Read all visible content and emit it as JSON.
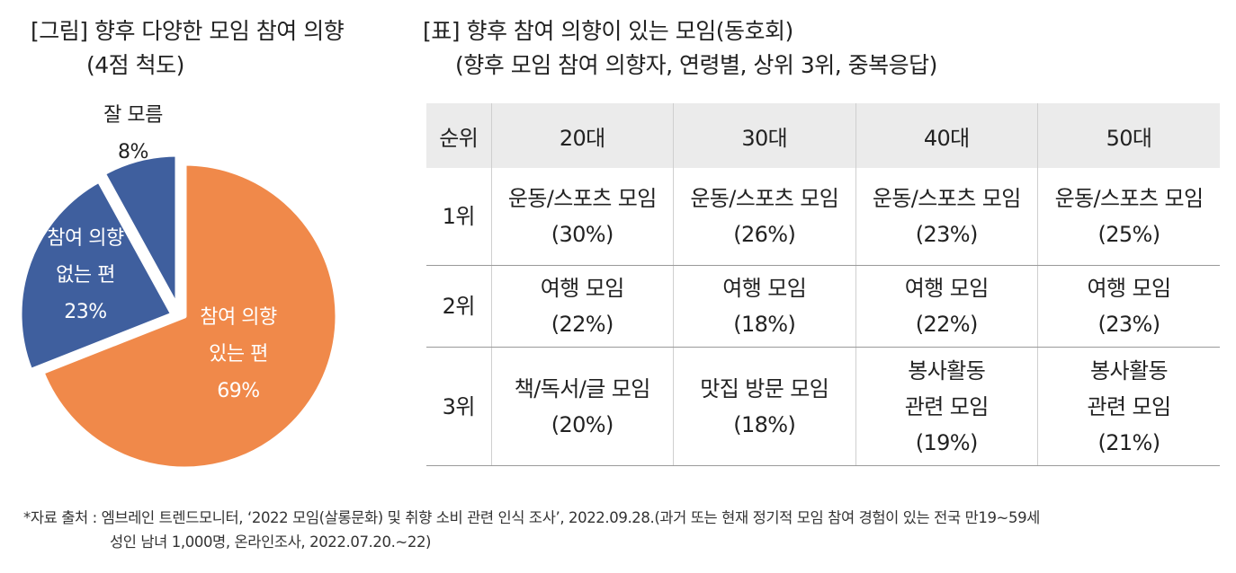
{
  "figure": {
    "title_line1": "[그림] 향후 다양한 모임 참여 의향",
    "title_line2": "(4점 척도)"
  },
  "chart_data": {
    "type": "pie",
    "slices": [
      {
        "label_lines": [
          "참여 의향",
          "있는 편"
        ],
        "value": 69,
        "value_label": "69%",
        "color": "#f0894a",
        "label_color": "#ffffff"
      },
      {
        "label_lines": [
          "참여 의향",
          "없는 편"
        ],
        "value": 23,
        "value_label": "23%",
        "color": "#3f5f9e",
        "label_color": "#ffffff"
      },
      {
        "label_lines": [
          "잘 모름"
        ],
        "value": 8,
        "value_label": "8%",
        "color": "#3f5f9e",
        "label_color": "#222222"
      }
    ]
  },
  "table": {
    "title_line1": "[표] 향후 참여 의향이 있는 모임(동호회)",
    "title_line2": "(향후 모임 참여 의향자, 연령별, 상위 3위, 중복응답)",
    "headers": [
      "순위",
      "20대",
      "30대",
      "40대",
      "50대"
    ],
    "rows": [
      {
        "rank": "1위",
        "cells": [
          {
            "name_lines": [
              "운동/스포츠 모임"
            ],
            "pct": "(30%)"
          },
          {
            "name_lines": [
              "운동/스포츠 모임"
            ],
            "pct": "(26%)"
          },
          {
            "name_lines": [
              "운동/스포츠 모임"
            ],
            "pct": "(23%)"
          },
          {
            "name_lines": [
              "운동/스포츠 모임"
            ],
            "pct": "(25%)"
          }
        ]
      },
      {
        "rank": "2위",
        "cells": [
          {
            "name_lines": [
              "여행 모임"
            ],
            "pct": "(22%)"
          },
          {
            "name_lines": [
              "여행 모임"
            ],
            "pct": "(18%)"
          },
          {
            "name_lines": [
              "여행 모임"
            ],
            "pct": "(22%)"
          },
          {
            "name_lines": [
              "여행 모임"
            ],
            "pct": "(23%)"
          }
        ]
      },
      {
        "rank": "3위",
        "cells": [
          {
            "name_lines": [
              "책/독서/글 모임"
            ],
            "pct": "(20%)"
          },
          {
            "name_lines": [
              "맛집 방문 모임"
            ],
            "pct": "(18%)"
          },
          {
            "name_lines": [
              "봉사활동",
              "관련 모임"
            ],
            "pct": "(19%)"
          },
          {
            "name_lines": [
              "봉사활동",
              "관련 모임"
            ],
            "pct": "(21%)"
          }
        ]
      }
    ]
  },
  "source": {
    "line1": "*자료 출처 : 엠브레인 트렌드모니터, ‘2022 모임(살롱문화) 및 취향 소비 관련 인식 조사’, 2022.09.28.(과거 또는 현재 정기적 모임 참여 경험이 있는 전국 만19~59세",
    "line2": "성인 남녀 1,000명, 온라인조사, 2022.07.20.~22)"
  }
}
